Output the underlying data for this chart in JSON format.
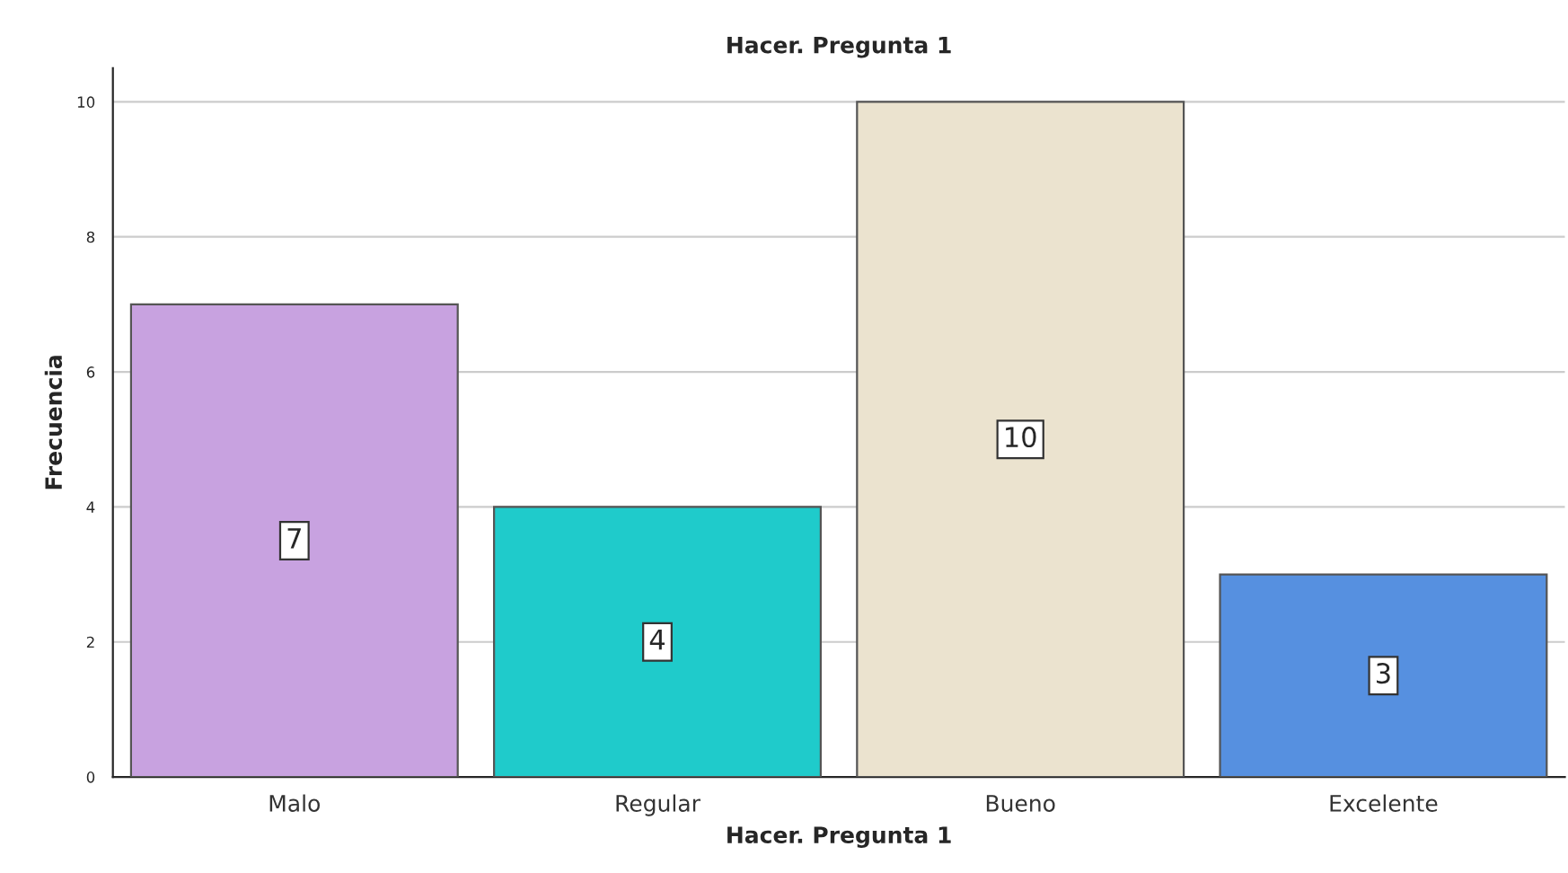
{
  "chart_data": {
    "type": "bar",
    "title": "Hacer. Pregunta 1",
    "xlabel": "Hacer. Pregunta 1",
    "ylabel": "Frecuencia",
    "categories": [
      "Malo",
      "Regular",
      "Bueno",
      "Excelente"
    ],
    "values": [
      7,
      4,
      10,
      3
    ],
    "colors": [
      "#c8a2e0",
      "#1fcbcb",
      "#ebe3cf",
      "#5690e0"
    ],
    "ylim": [
      0,
      10.5
    ],
    "yticks": [
      0,
      2,
      4,
      6,
      8,
      10
    ],
    "grid": "y",
    "data_labels": true
  }
}
